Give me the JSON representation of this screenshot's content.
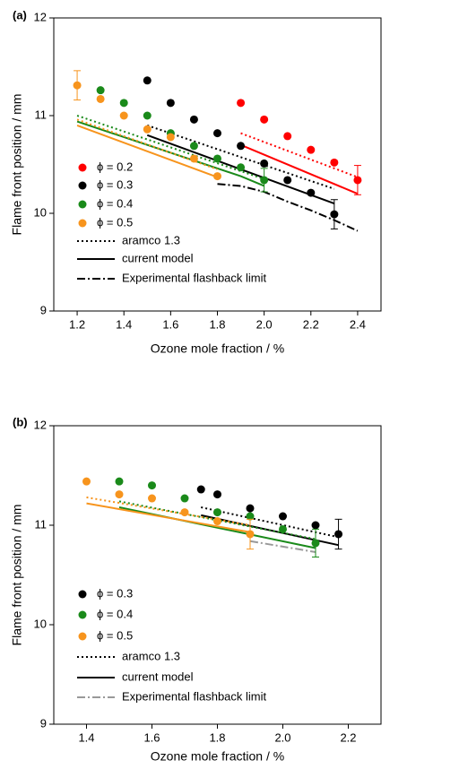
{
  "chart_data": [
    {
      "type": "scatter",
      "panel_label": "(a)",
      "x_label": "Ozone mole fraction / %",
      "y_label": "Flame front position / mm",
      "xlim": [
        1.1,
        2.5
      ],
      "xticks": [
        1.2,
        1.4,
        1.6,
        1.8,
        {
          "value": 2,
          "label": "2.0"
        },
        2.2,
        2.4
      ],
      "ylim": [
        9,
        12
      ],
      "yticks": [
        9,
        10,
        11,
        12
      ],
      "series": [
        {
          "name": "ϕ = 0.2",
          "color": "#ff0000",
          "x": [
            1.9,
            2.0,
            2.1,
            2.2,
            2.3,
            2.4
          ],
          "values": [
            11.13,
            10.96,
            10.79,
            10.65,
            10.52,
            10.34
          ],
          "errors": [
            null,
            null,
            null,
            null,
            null,
            0.15
          ]
        },
        {
          "name": "ϕ = 0.3",
          "color": "#000000",
          "x": [
            1.5,
            1.6,
            1.7,
            1.8,
            1.9,
            2.0,
            2.1,
            2.2,
            2.3
          ],
          "values": [
            11.36,
            11.13,
            10.96,
            10.82,
            10.69,
            10.51,
            10.34,
            10.21,
            9.99
          ],
          "errors": [
            null,
            null,
            null,
            null,
            null,
            null,
            null,
            null,
            0.15
          ]
        },
        {
          "name": "ϕ = 0.4",
          "color": "#1a8a1a",
          "x": [
            1.3,
            1.4,
            1.5,
            1.6,
            1.7,
            1.8,
            1.9,
            2.0
          ],
          "values": [
            11.26,
            11.13,
            11.0,
            10.82,
            10.69,
            10.56,
            10.47,
            10.34
          ],
          "errors": [
            null,
            null,
            null,
            null,
            null,
            null,
            null,
            0.12
          ]
        },
        {
          "name": "ϕ = 0.5",
          "color": "#f7941d",
          "x": [
            1.2,
            1.3,
            1.4,
            1.5,
            1.6,
            1.7,
            1.8
          ],
          "values": [
            11.31,
            11.17,
            11.0,
            10.86,
            10.78,
            10.56,
            10.38
          ],
          "errors": [
            0.15,
            null,
            null,
            null,
            null,
            null,
            null
          ]
        }
      ],
      "lines": [
        {
          "style": "dotted",
          "color": "#ff0000",
          "x": [
            1.9,
            2.4
          ],
          "values": [
            10.82,
            10.37
          ]
        },
        {
          "style": "solid",
          "color": "#ff0000",
          "x": [
            1.9,
            2.4
          ],
          "values": [
            10.7,
            10.2
          ]
        },
        {
          "style": "dotted",
          "color": "#000000",
          "x": [
            1.5,
            2.3
          ],
          "values": [
            10.9,
            10.25
          ]
        },
        {
          "style": "solid",
          "color": "#000000",
          "x": [
            1.5,
            2.3
          ],
          "values": [
            10.8,
            10.1
          ]
        },
        {
          "style": "dotted",
          "color": "#1a8a1a",
          "x": [
            1.2,
            2.0
          ],
          "values": [
            11.0,
            10.35
          ]
        },
        {
          "style": "solid",
          "color": "#1a8a1a",
          "x": [
            1.2,
            1.9,
            2.0
          ],
          "values": [
            10.94,
            10.38,
            10.28
          ]
        },
        {
          "style": "dotted",
          "color": "#f7941d",
          "x": [
            1.2,
            1.8
          ],
          "values": [
            10.96,
            10.45
          ]
        },
        {
          "style": "solid",
          "color": "#f7941d",
          "x": [
            1.2,
            1.8
          ],
          "values": [
            10.9,
            10.37
          ]
        },
        {
          "style": "dashdot",
          "color": "#000000",
          "x": [
            1.8,
            1.9,
            2.0,
            2.1,
            2.2,
            2.3,
            2.4
          ],
          "values": [
            10.3,
            10.28,
            10.22,
            10.12,
            10.03,
            9.93,
            9.82
          ]
        }
      ],
      "legend": [
        {
          "label": "aramco 1.3",
          "style": "dotted",
          "color": "#000000"
        },
        {
          "label": "current model",
          "style": "solid",
          "color": "#000000"
        },
        {
          "label": "Experimental flashback limit",
          "style": "dashdot",
          "color": "#000000"
        }
      ]
    },
    {
      "type": "scatter",
      "panel_label": "(b)",
      "x_label": "Ozone mole fraction / %",
      "y_label": "Flame front position / mm",
      "xlim": [
        1.3,
        2.3
      ],
      "xticks": [
        1.4,
        1.6,
        1.8,
        {
          "value": 2,
          "label": "2.0"
        },
        2.2
      ],
      "ylim": [
        9,
        12
      ],
      "yticks": [
        9,
        10,
        11,
        12
      ],
      "series": [
        {
          "name": "ϕ = 0.3",
          "color": "#000000",
          "x": [
            1.75,
            1.8,
            1.9,
            2.0,
            2.1,
            2.17
          ],
          "values": [
            11.36,
            11.31,
            11.17,
            11.09,
            11.0,
            10.91
          ],
          "errors": [
            null,
            null,
            null,
            null,
            null,
            0.15
          ]
        },
        {
          "name": "ϕ = 0.4",
          "color": "#1a8a1a",
          "x": [
            1.5,
            1.6,
            1.7,
            1.8,
            1.9,
            2.0,
            2.1
          ],
          "values": [
            11.44,
            11.4,
            11.27,
            11.13,
            11.09,
            10.96,
            10.82
          ],
          "errors": [
            null,
            null,
            null,
            null,
            null,
            null,
            0.14
          ]
        },
        {
          "name": "ϕ = 0.5",
          "color": "#f7941d",
          "x": [
            1.4,
            1.5,
            1.6,
            1.7,
            1.8,
            1.9
          ],
          "values": [
            11.44,
            11.31,
            11.27,
            11.13,
            11.04,
            10.91
          ],
          "errors": [
            null,
            null,
            null,
            null,
            null,
            0.15
          ]
        }
      ],
      "lines": [
        {
          "style": "dotted",
          "color": "#000000",
          "x": [
            1.75,
            2.17
          ],
          "values": [
            11.18,
            10.88
          ]
        },
        {
          "style": "solid",
          "color": "#000000",
          "x": [
            1.75,
            2.17
          ],
          "values": [
            11.1,
            10.8
          ]
        },
        {
          "style": "dotted",
          "color": "#1a8a1a",
          "x": [
            1.5,
            2.1
          ],
          "values": [
            11.24,
            10.86
          ]
        },
        {
          "style": "solid",
          "color": "#1a8a1a",
          "x": [
            1.5,
            2.1
          ],
          "values": [
            11.18,
            10.77
          ]
        },
        {
          "style": "dotted",
          "color": "#f7941d",
          "x": [
            1.4,
            1.9
          ],
          "values": [
            11.28,
            11.0
          ]
        },
        {
          "style": "solid",
          "color": "#f7941d",
          "x": [
            1.4,
            1.9
          ],
          "values": [
            11.22,
            10.93
          ]
        },
        {
          "style": "dashdot",
          "color": "#999999",
          "x": [
            1.9,
            2.1
          ],
          "values": [
            10.84,
            10.73
          ]
        }
      ],
      "legend": [
        {
          "label": "aramco 1.3",
          "style": "dotted",
          "color": "#000000"
        },
        {
          "label": "current model",
          "style": "solid",
          "color": "#000000"
        },
        {
          "label": "Experimental flashback limit",
          "style": "dashdot",
          "color": "#999999"
        }
      ]
    }
  ]
}
